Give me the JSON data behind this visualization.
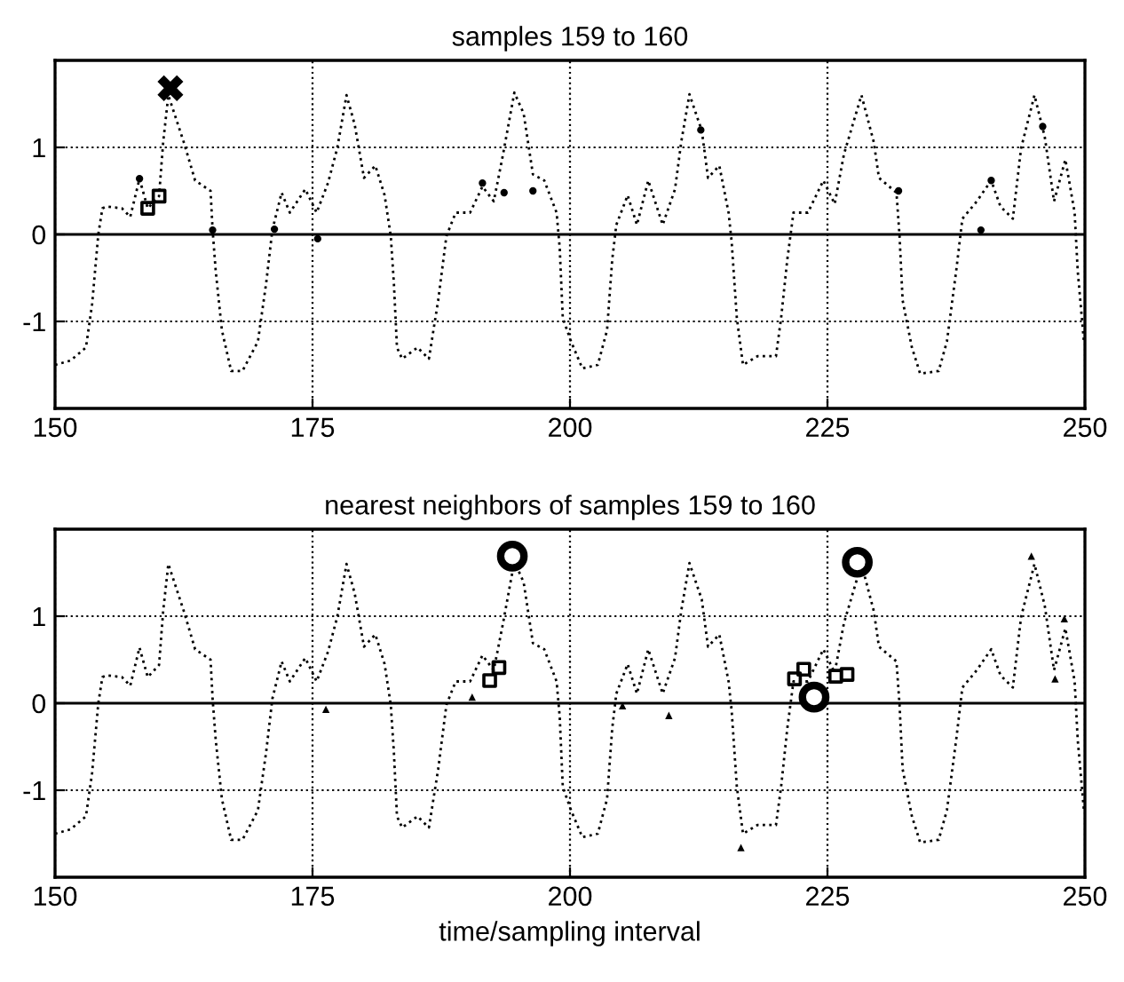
{
  "chart_data": [
    {
      "type": "line",
      "title": "samples 159 to 160",
      "xlim": [
        150,
        250
      ],
      "xticks": [
        150,
        175,
        200,
        225,
        250
      ],
      "ylim": [
        -2,
        2
      ],
      "yticks": [
        -1,
        0,
        1
      ],
      "grid": true,
      "ref_lines": [
        {
          "axis": "y",
          "value": 0,
          "color": "#000000",
          "line_style": "solid"
        }
      ],
      "series": [
        {
          "type": "line",
          "color": "#000000",
          "line_style": "dotted",
          "marker": "none",
          "x": [
            150,
            151.5,
            153,
            153.6,
            154.2,
            154.6,
            155.0,
            156.5,
            157.3,
            158.2,
            159.0,
            160.1,
            160.5,
            161.0,
            162.5,
            163.6,
            165.1,
            165.3,
            165.6,
            166.2,
            167.1,
            168.2,
            169.7,
            170.5,
            171.1,
            172.0,
            172.8,
            174.3,
            175.4,
            176.5,
            177.4,
            178.3,
            179.1,
            180.0,
            181.1,
            182.0,
            182.6,
            182.9,
            183.2,
            183.7,
            185.2,
            186.3,
            187.2,
            188.0,
            188.9,
            190.3,
            191.5,
            192.6,
            193.5,
            194.6,
            195.5,
            196.4,
            197.5,
            198.7,
            199.0,
            199.3,
            200.1,
            201.2,
            202.7,
            203.6,
            204.1,
            204.5,
            205.6,
            206.5,
            207.6,
            209.0,
            210.2,
            210.8,
            211.6,
            212.8,
            213.4,
            214.5,
            215.4,
            215.7,
            216.2,
            216.8,
            218.2,
            220.0,
            220.5,
            221.1,
            221.7,
            223.1,
            224.6,
            225.7,
            226.6,
            228.3,
            229.5,
            230.0,
            231.7,
            232.0,
            232.3,
            233.2,
            234.0,
            235.8,
            236.6,
            237.5,
            238.1,
            239.5,
            240.9,
            241.8,
            243.0,
            243.8,
            245.1,
            246.1,
            247.0,
            248.1,
            249.0,
            249.3,
            249.9
          ],
          "values": [
            -1.5,
            -1.45,
            -1.3,
            -0.8,
            0.0,
            0.3,
            0.32,
            0.3,
            0.2,
            0.64,
            0.3,
            0.44,
            1.06,
            1.6,
            1.06,
            0.62,
            0.5,
            0.05,
            -0.42,
            -1.1,
            -1.57,
            -1.57,
            -1.23,
            -0.56,
            0.05,
            0.48,
            0.25,
            0.52,
            0.25,
            0.59,
            0.99,
            1.6,
            1.26,
            0.65,
            0.79,
            0.45,
            -0.02,
            -0.56,
            -1.3,
            -1.43,
            -1.3,
            -1.43,
            -0.76,
            -0.02,
            0.25,
            0.25,
            0.55,
            0.38,
            0.92,
            1.63,
            1.39,
            0.69,
            0.62,
            0.25,
            -0.15,
            -0.96,
            -1.23,
            -1.54,
            -1.5,
            -1.1,
            -0.29,
            0.11,
            0.45,
            0.11,
            0.62,
            0.11,
            0.52,
            1.06,
            1.61,
            1.19,
            0.65,
            0.79,
            0.25,
            -0.09,
            -0.96,
            -1.5,
            -1.4,
            -1.4,
            -0.96,
            -0.29,
            0.25,
            0.25,
            0.62,
            0.35,
            0.92,
            1.6,
            1.06,
            0.65,
            0.48,
            -0.02,
            -0.76,
            -1.3,
            -1.6,
            -1.57,
            -1.23,
            -0.42,
            0.18,
            0.38,
            0.62,
            0.32,
            0.18,
            0.99,
            1.6,
            1.12,
            0.38,
            0.86,
            0.25,
            -0.42,
            -1.23
          ]
        },
        {
          "type": "scatter",
          "color": "#000000",
          "marker": "circle",
          "x": [
            158.2,
            165.3,
            171.3,
            175.5,
            191.5,
            193.6,
            196.4,
            212.7,
            231.9,
            239.9,
            240.9,
            245.9
          ],
          "values": [
            0.64,
            0.05,
            0.06,
            -0.05,
            0.59,
            0.48,
            0.5,
            1.2,
            0.5,
            0.05,
            0.62,
            1.24
          ]
        },
        {
          "type": "scatter",
          "color": "#000000",
          "marker": "square",
          "x": [
            159.0,
            160.1
          ],
          "values": [
            0.3,
            0.44
          ]
        },
        {
          "type": "scatter",
          "color": "#000000",
          "marker": "cross",
          "x": [
            161.2
          ],
          "values": [
            1.68
          ]
        }
      ]
    },
    {
      "type": "line",
      "title": "nearest neighbors of samples 159 to 160",
      "xlabel": "time/sampling interval",
      "xlim": [
        150,
        250
      ],
      "xticks": [
        150,
        175,
        200,
        225,
        250
      ],
      "ylim": [
        -2,
        2
      ],
      "yticks": [
        -1,
        0,
        1
      ],
      "grid": true,
      "ref_lines": [
        {
          "axis": "y",
          "value": 0,
          "color": "#000000",
          "line_style": "solid"
        }
      ],
      "series": [
        {
          "type": "line",
          "color": "#000000",
          "line_style": "dotted",
          "marker": "none",
          "x": [
            150,
            151.5,
            153,
            153.6,
            154.2,
            154.6,
            155.0,
            156.5,
            157.3,
            158.2,
            159.0,
            160.1,
            160.5,
            161.0,
            162.5,
            163.6,
            165.1,
            165.3,
            165.6,
            166.2,
            167.1,
            168.2,
            169.7,
            170.5,
            171.1,
            172.0,
            172.8,
            174.3,
            175.4,
            176.5,
            177.4,
            178.3,
            179.1,
            180.0,
            181.1,
            182.0,
            182.6,
            182.9,
            183.2,
            183.7,
            185.2,
            186.3,
            187.2,
            188.0,
            188.9,
            190.3,
            191.5,
            192.6,
            193.5,
            194.6,
            195.5,
            196.4,
            197.5,
            198.7,
            199.0,
            199.3,
            200.1,
            201.2,
            202.7,
            203.6,
            204.1,
            204.5,
            205.6,
            206.5,
            207.6,
            209.0,
            210.2,
            210.8,
            211.6,
            212.8,
            213.4,
            214.5,
            215.4,
            215.7,
            216.2,
            216.8,
            218.2,
            220.0,
            220.5,
            221.1,
            221.7,
            223.1,
            224.6,
            225.7,
            226.6,
            228.3,
            229.5,
            230.0,
            231.7,
            232.0,
            232.3,
            233.2,
            234.0,
            235.8,
            236.6,
            237.5,
            238.1,
            239.5,
            240.9,
            241.8,
            243.0,
            243.8,
            245.1,
            246.1,
            247.0,
            248.1,
            249.0,
            249.3,
            249.9
          ],
          "values": [
            -1.5,
            -1.45,
            -1.3,
            -0.8,
            0.0,
            0.3,
            0.32,
            0.3,
            0.2,
            0.64,
            0.3,
            0.44,
            1.06,
            1.6,
            1.06,
            0.62,
            0.5,
            0.05,
            -0.42,
            -1.1,
            -1.57,
            -1.57,
            -1.23,
            -0.56,
            0.05,
            0.48,
            0.25,
            0.52,
            0.25,
            0.59,
            0.99,
            1.6,
            1.26,
            0.65,
            0.79,
            0.45,
            -0.02,
            -0.56,
            -1.3,
            -1.43,
            -1.3,
            -1.43,
            -0.76,
            -0.02,
            0.25,
            0.25,
            0.55,
            0.38,
            0.92,
            1.63,
            1.39,
            0.69,
            0.62,
            0.25,
            -0.15,
            -0.96,
            -1.23,
            -1.54,
            -1.5,
            -1.1,
            -0.29,
            0.11,
            0.45,
            0.11,
            0.62,
            0.11,
            0.52,
            1.06,
            1.61,
            1.19,
            0.65,
            0.79,
            0.25,
            -0.09,
            -0.96,
            -1.5,
            -1.4,
            -1.4,
            -0.96,
            -0.29,
            0.25,
            0.25,
            0.62,
            0.35,
            0.92,
            1.6,
            1.06,
            0.65,
            0.48,
            -0.02,
            -0.76,
            -1.3,
            -1.6,
            -1.57,
            -1.23,
            -0.42,
            0.18,
            0.38,
            0.62,
            0.32,
            0.18,
            0.99,
            1.6,
            1.12,
            0.38,
            0.86,
            0.25,
            -0.42,
            -1.23
          ]
        },
        {
          "type": "scatter",
          "color": "#000000",
          "marker": "triangle",
          "x": [
            176.3,
            190.5,
            205.1,
            209.6,
            216.6,
            244.8,
            247.1,
            248.0
          ],
          "values": [
            -0.07,
            0.07,
            -0.03,
            -0.14,
            -1.66,
            1.69,
            0.28,
            0.97
          ]
        },
        {
          "type": "scatter",
          "color": "#000000",
          "marker": "square",
          "x": [
            192.2,
            193.1,
            221.8,
            222.7,
            225.8,
            226.9
          ],
          "values": [
            0.26,
            0.41,
            0.28,
            0.39,
            0.31,
            0.33
          ]
        },
        {
          "type": "bubble",
          "color": "#000000",
          "marker": "circle",
          "x": [
            194.4,
            223.7,
            227.9
          ],
          "values": [
            1.69,
            0.07,
            1.62
          ],
          "sizes": [
            1,
            1,
            1
          ]
        }
      ]
    }
  ]
}
